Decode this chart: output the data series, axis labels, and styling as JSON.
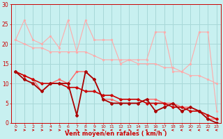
{
  "xlabel": "Vent moyen/en rafales ( km/h )",
  "background_color": "#c8f0f0",
  "grid_color": "#a8d8d8",
  "x": [
    0,
    1,
    2,
    3,
    4,
    5,
    6,
    7,
    8,
    9,
    10,
    11,
    12,
    13,
    14,
    15,
    16,
    17,
    18,
    19,
    20,
    21,
    22,
    23
  ],
  "line_rafales_max": [
    21,
    26,
    21,
    20,
    22,
    19,
    26,
    18,
    26,
    21,
    21,
    21,
    15,
    16,
    16,
    16,
    23,
    23,
    13,
    13,
    15,
    23,
    23,
    3
  ],
  "line_rafales_smooth": [
    21,
    20,
    19,
    19,
    18,
    18,
    18,
    18,
    18,
    17,
    16,
    16,
    16,
    16,
    15,
    15,
    15,
    14,
    14,
    13,
    12,
    12,
    11,
    10
  ],
  "line_vent_jagged": [
    13,
    12,
    11,
    8,
    10,
    11,
    10,
    13,
    13,
    11,
    6,
    6,
    5,
    5,
    5,
    6,
    6,
    5,
    5,
    4,
    4,
    3,
    1,
    1
  ],
  "line_vent_smooth": [
    13,
    12,
    11,
    10,
    10,
    10,
    9,
    9,
    8,
    8,
    7,
    7,
    6,
    6,
    6,
    5,
    5,
    5,
    4,
    4,
    3,
    3,
    2,
    1
  ],
  "line_vent_low": [
    13,
    11,
    10,
    8,
    10,
    10,
    10,
    2,
    13,
    11,
    6,
    5,
    5,
    5,
    5,
    6,
    3,
    4,
    5,
    3,
    4,
    3,
    1,
    0
  ],
  "ylim": [
    0,
    30
  ],
  "xlim_min": -0.5,
  "xlim_max": 23.5,
  "color_light1": "#ffaaaa",
  "color_light2": "#ffbbbb",
  "color_medium": "#ff6666",
  "color_dark": "#cc0000",
  "color_darkest": "#aa0000",
  "arrow_directions": [
    1,
    1,
    1,
    1,
    1,
    1,
    1,
    1,
    1,
    1,
    0,
    -1,
    -1,
    0,
    -1,
    -1,
    -1,
    -1,
    -1,
    -1,
    -1,
    -1,
    -1,
    -1
  ]
}
